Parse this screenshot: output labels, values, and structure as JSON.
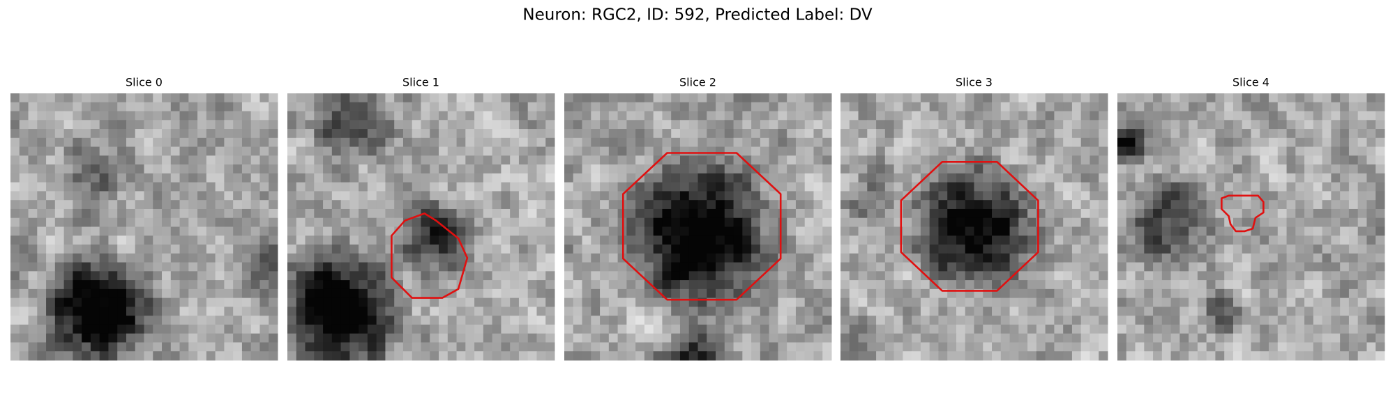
{
  "title": "Neuron: RGC2, ID: 592, Predicted Label: DV",
  "panels": [
    {
      "title": "Slice 0"
    },
    {
      "title": "Slice 1"
    },
    {
      "title": "Slice 2"
    },
    {
      "title": "Slice 3"
    },
    {
      "title": "Slice 4"
    }
  ]
}
